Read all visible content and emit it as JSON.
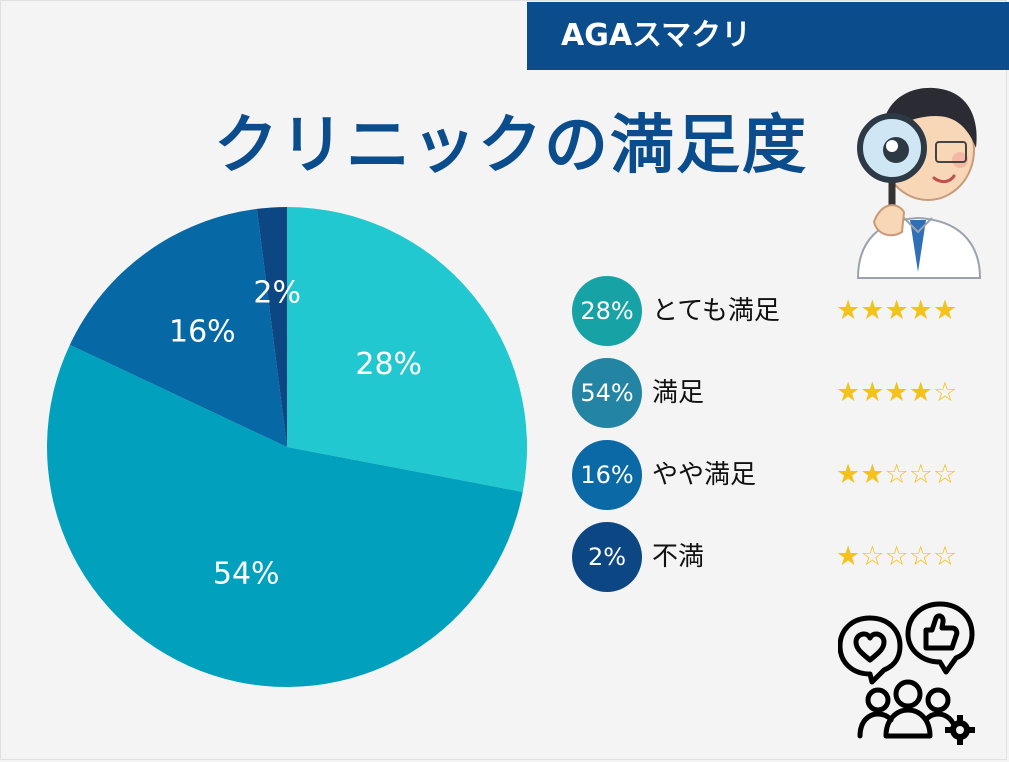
{
  "header": {
    "brand": "AGAスマクリ",
    "title": "クリニックの満足度"
  },
  "colors": {
    "brand": "#0b4d8c",
    "slice_1": "#22c8cf",
    "slice_2": "#01a0bd",
    "slice_3": "#0668a4",
    "slice_4": "#0c4683",
    "legend_1": "#17a3a6",
    "legend_2": "#2385a3",
    "legend_3": "#0b6aa6",
    "legend_4": "#0c4683",
    "star": "#f5c21b"
  },
  "legend": [
    {
      "pct": "28%",
      "label": "とても満足",
      "stars": 5
    },
    {
      "pct": "54%",
      "label": "満足",
      "stars": 4
    },
    {
      "pct": "16%",
      "label": "やや満足",
      "stars": 2
    },
    {
      "pct": "2%",
      "label": "不満",
      "stars": 1
    }
  ],
  "chart_data": {
    "type": "pie",
    "title": "クリニックの満足度",
    "categories": [
      "とても満足",
      "満足",
      "やや満足",
      "不満"
    ],
    "values": [
      28,
      54,
      16,
      2
    ],
    "value_labels": [
      "28%",
      "54%",
      "16%",
      "2%"
    ],
    "legend_placement": "right"
  },
  "icons": [
    "doctor-with-magnifier-illustration",
    "customer-feedback-icon"
  ]
}
